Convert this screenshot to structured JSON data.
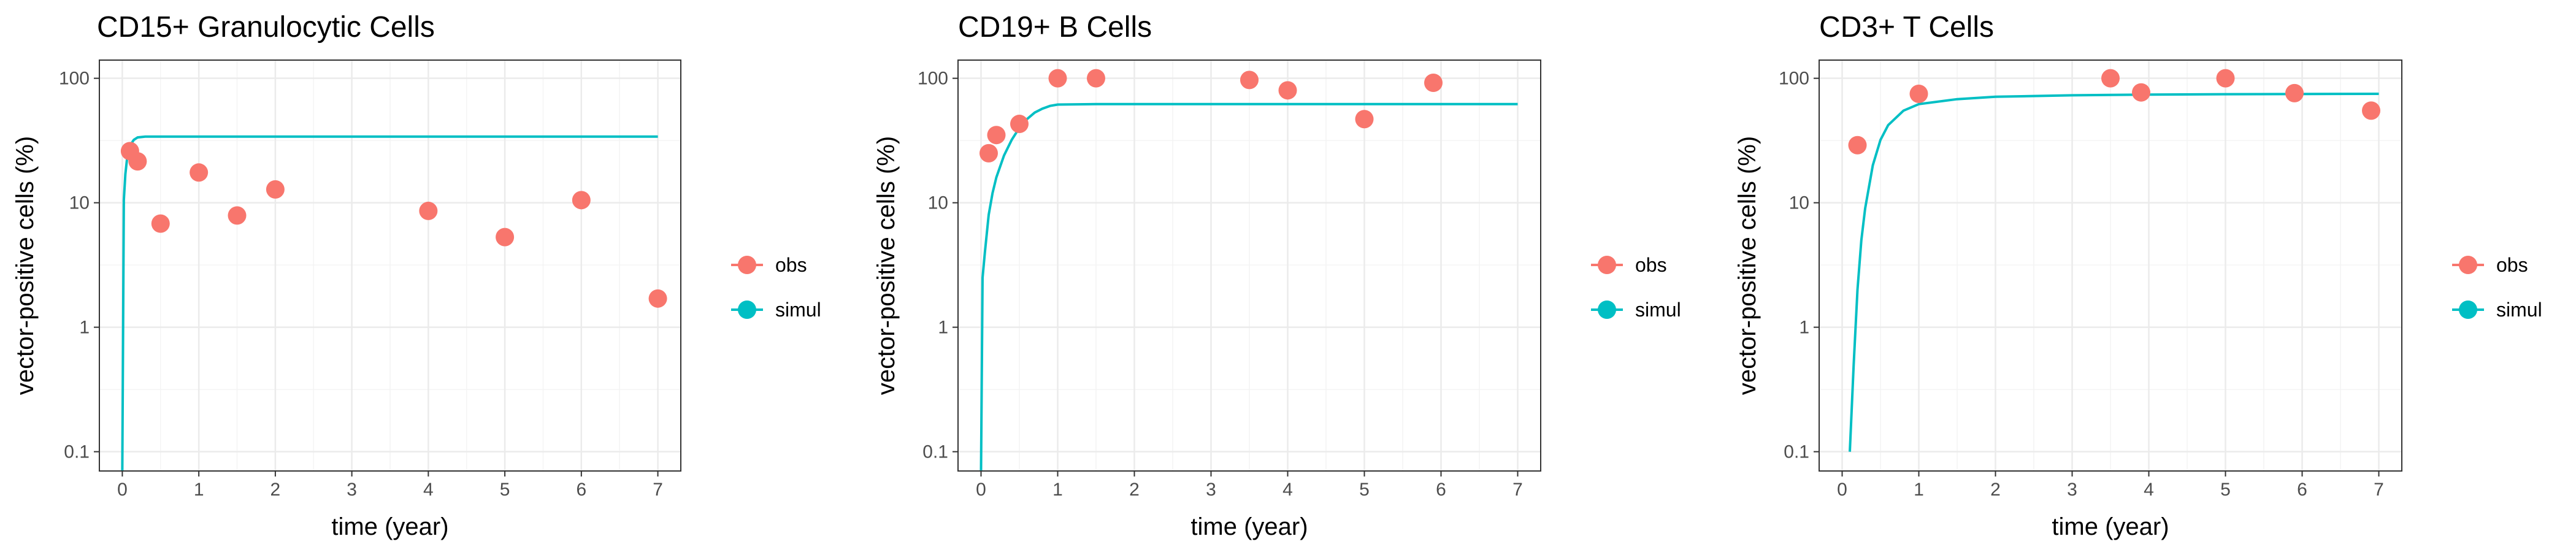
{
  "chart_data": [
    {
      "type": "scatter",
      "title": "CD15+ Granulocytic Cells",
      "xlabel": "time (year)",
      "ylabel": "vector-positive cells (%)",
      "xlim": [
        -0.3,
        7.3
      ],
      "ylim": [
        0.07,
        140
      ],
      "y_scale": "log10",
      "grid": true,
      "x_ticks": [
        0,
        1,
        2,
        3,
        4,
        5,
        6,
        7
      ],
      "x_tick_labels": [
        "0",
        "1",
        "2",
        "3",
        "4",
        "5",
        "6",
        "7"
      ],
      "y_ticks": [
        0.1,
        1,
        10,
        100
      ],
      "y_tick_labels": [
        "0.1",
        "1",
        "10",
        "100"
      ],
      "legend": {
        "position": "right",
        "entries": [
          "obs",
          "simul"
        ]
      },
      "series": [
        {
          "name": "obs",
          "type": "scatter",
          "x": [
            0.1,
            0.2,
            0.5,
            1.0,
            1.5,
            2.0,
            4.0,
            5.0,
            6.0,
            7.0
          ],
          "y": [
            26,
            21.5,
            6.8,
            17.5,
            7.9,
            12.8,
            8.6,
            5.3,
            10.5,
            1.7
          ]
        },
        {
          "name": "simul",
          "type": "line",
          "x": [
            0.0,
            0.02,
            0.04,
            0.06,
            0.08,
            0.1,
            0.12,
            0.15,
            0.2,
            0.3,
            0.5,
            1.0,
            2.0,
            4.0,
            7.0
          ],
          "y": [
            0.07,
            10.5,
            17,
            22,
            25.5,
            28,
            30,
            32,
            33.5,
            34,
            34,
            34,
            34,
            34,
            34
          ]
        }
      ]
    },
    {
      "type": "scatter",
      "title": "CD19+ B Cells",
      "xlabel": "time (year)",
      "ylabel": "vector-positive cells (%)",
      "xlim": [
        -0.3,
        7.3
      ],
      "ylim": [
        0.07,
        140
      ],
      "y_scale": "log10",
      "grid": true,
      "x_ticks": [
        0,
        1,
        2,
        3,
        4,
        5,
        6,
        7
      ],
      "x_tick_labels": [
        "0",
        "1",
        "2",
        "3",
        "4",
        "5",
        "6",
        "7"
      ],
      "y_ticks": [
        0.1,
        1,
        10,
        100
      ],
      "y_tick_labels": [
        "0.1",
        "1",
        "10",
        "100"
      ],
      "legend": {
        "position": "right",
        "entries": [
          "obs",
          "simul"
        ]
      },
      "series": [
        {
          "name": "obs",
          "type": "scatter",
          "x": [
            0.1,
            0.2,
            0.5,
            1.0,
            1.5,
            3.5,
            4.0,
            5.0,
            5.9
          ],
          "y": [
            25,
            35,
            43,
            100,
            100,
            97,
            80,
            47,
            92
          ]
        },
        {
          "name": "simul",
          "type": "line",
          "x": [
            0.0,
            0.02,
            0.05,
            0.1,
            0.15,
            0.2,
            0.3,
            0.4,
            0.5,
            0.6,
            0.7,
            0.8,
            0.9,
            1.0,
            1.5,
            2.0,
            4.0,
            7.0
          ],
          "y": [
            0.07,
            2.5,
            4,
            8,
            12,
            16,
            24,
            32,
            40,
            47,
            53,
            57,
            60,
            61.5,
            62,
            62,
            62,
            62
          ]
        }
      ]
    },
    {
      "type": "scatter",
      "title": "CD3+ T Cells",
      "xlabel": "time (year)",
      "ylabel": "vector-positive cells (%)",
      "xlim": [
        -0.3,
        7.3
      ],
      "ylim": [
        0.07,
        140
      ],
      "y_scale": "log10",
      "grid": true,
      "x_ticks": [
        0,
        1,
        2,
        3,
        4,
        5,
        6,
        7
      ],
      "x_tick_labels": [
        "0",
        "1",
        "2",
        "3",
        "4",
        "5",
        "6",
        "7"
      ],
      "y_ticks": [
        0.1,
        1,
        10,
        100
      ],
      "y_tick_labels": [
        "0.1",
        "1",
        "10",
        "100"
      ],
      "legend": {
        "position": "right",
        "entries": [
          "obs",
          "simul"
        ]
      },
      "series": [
        {
          "name": "obs",
          "type": "scatter",
          "x": [
            0.2,
            1.0,
            3.5,
            3.9,
            5.0,
            5.9,
            6.9
          ],
          "y": [
            29,
            75,
            100,
            77,
            100,
            76,
            55
          ]
        },
        {
          "name": "simul",
          "type": "line",
          "x": [
            0.1,
            0.15,
            0.2,
            0.25,
            0.3,
            0.4,
            0.5,
            0.6,
            0.8,
            1.0,
            1.5,
            2.0,
            3.0,
            4.0,
            5.0,
            7.0
          ],
          "y": [
            0.1,
            0.5,
            2,
            5,
            9,
            20,
            32,
            42,
            55,
            62,
            68,
            71,
            73,
            74,
            74.5,
            75
          ]
        }
      ]
    }
  ],
  "colors": {
    "obs": "#F8766D",
    "simul": "#00BFC4",
    "panel_border": "#333333",
    "grid_major": "#EBEBEB",
    "grid_minor": "#F4F4F4",
    "tick_text": "#4D4D4D",
    "axis_title": "#000000"
  }
}
